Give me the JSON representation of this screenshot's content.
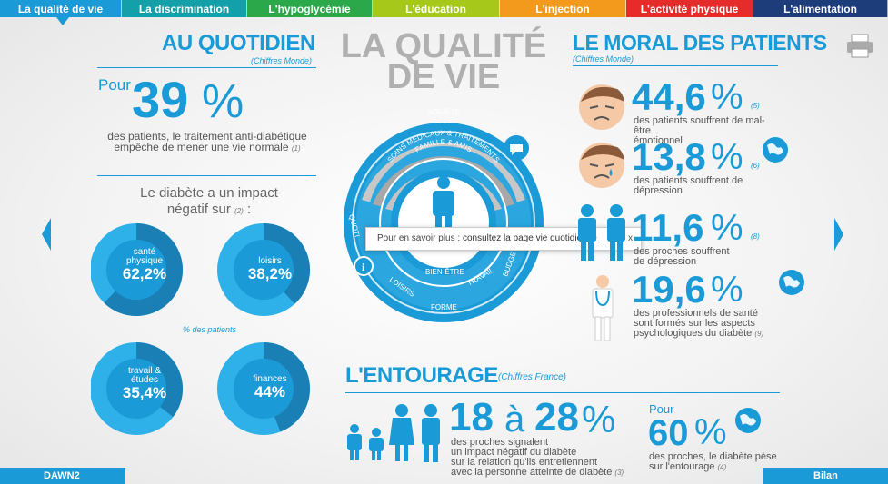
{
  "nav": {
    "tabs": [
      {
        "label": "La qualité de vie",
        "color": "#1a9ad6",
        "width": 134
      },
      {
        "label": "La discrimination",
        "color": "#14a0a8",
        "width": 138
      },
      {
        "label": "L'hypoglycémie",
        "color": "#2aa84a",
        "width": 138
      },
      {
        "label": "L'éducation",
        "color": "#a5c81a",
        "width": 140
      },
      {
        "label": "L'injection",
        "color": "#f39a1c",
        "width": 139
      },
      {
        "label": "L'activité physique",
        "color": "#e62b2b",
        "width": 140
      },
      {
        "label": "L'alimentation",
        "color": "#1d3c7a",
        "width": 148
      }
    ]
  },
  "colors": {
    "accent": "#1a9ad6",
    "donut_dark": "#1a7fb5",
    "donut_light": "#2eb0e8",
    "ring_grey": "#b3b3b3"
  },
  "left": {
    "title": "AU QUOTIDIEN",
    "subtitle": "(Chiffres Monde)",
    "pour": "Pour",
    "big_value": "39",
    "unit": "%",
    "text_line1": "des patients, le traitement anti-diabétique",
    "text_line2": "empêche de mener une vie normale",
    "ref": "(1)",
    "impact_line1": "Le diabète a un impact",
    "impact_line2": "négatif sur",
    "impact_ref": "(2)",
    "impact_colon": ":",
    "pct_note": "% des patients",
    "donuts": [
      {
        "label": "santé physique",
        "value": "62,2%",
        "pct": 62.2
      },
      {
        "label": "loisirs",
        "value": "38,2%",
        "pct": 38.2
      },
      {
        "label": "travail & études",
        "value": "35,4%",
        "pct": 35.4
      },
      {
        "label": "finances",
        "value": "44%",
        "pct": 44
      }
    ]
  },
  "center": {
    "title_line1": "LA QUALITÉ",
    "title_line2": "DE VIE",
    "ring_outer": "SOCIÉTÉ",
    "ring_mid": "SOINS MÉDICAUX & TRAITEMENTS",
    "ring_inner": "FAMILLE & AMIS",
    "ring_blue": [
      "QUOTI",
      "LOISIRS",
      "BIEN-ÊTRE",
      "TRAVAIL",
      "BUDGET",
      "FORME"
    ],
    "info_icon": "info-icon",
    "speech_icon": "speech-bubble-icon"
  },
  "tooltip": {
    "prefix": "Pour en savoir plus :",
    "link": "consultez la page vie quotidienne",
    "close": "x"
  },
  "right": {
    "title": "LE MORAL DES PATIENTS",
    "subtitle": "(Chiffres Monde)",
    "stats": [
      {
        "value": "44,6",
        "unit": "%",
        "ref": "(5)",
        "line1": "des patients souffrent de mal-être",
        "line2": "émotionnel",
        "line3": "",
        "line4": "",
        "icon": "sad-face-icon"
      },
      {
        "value": "13,8",
        "unit": "%",
        "ref": "(6)",
        "line1": "des patients souffrent de",
        "line2": "dépression",
        "line3": "",
        "line4": "",
        "icon": "crying-face-icon"
      },
      {
        "value": "11,6",
        "unit": "%",
        "ref": "(8)",
        "line1": "des proches souffrent",
        "line2": "de dépression",
        "line3": "",
        "line4": "",
        "icon": "relatives-icon"
      },
      {
        "value": "19,6",
        "unit": "%",
        "ref": "(9)",
        "line1": "des professionnels de santé",
        "line2": "sont formés sur les aspects",
        "line3": "psychologiques du diabète",
        "line4": "",
        "icon": "doctor-icon"
      }
    ]
  },
  "entourage": {
    "title": "L'ENTOURAGE",
    "subtitle": "(Chiffres France)",
    "range_from": "18",
    "range_sep": "à",
    "range_to": "28",
    "unit": "%",
    "text1": "des proches signalent",
    "text2": "un impact négatif du diabète",
    "text3": "sur la relation qu'ils entretiennent",
    "text4": "avec la personne atteinte de diabète",
    "ref": "(3)",
    "pour": "Pour",
    "value2": "60",
    "text5": "des proches, le diabète pèse",
    "text6": "sur l'entourage",
    "ref2": "(4)"
  },
  "footer": {
    "left": "DAWN2",
    "right": "Bilan"
  }
}
